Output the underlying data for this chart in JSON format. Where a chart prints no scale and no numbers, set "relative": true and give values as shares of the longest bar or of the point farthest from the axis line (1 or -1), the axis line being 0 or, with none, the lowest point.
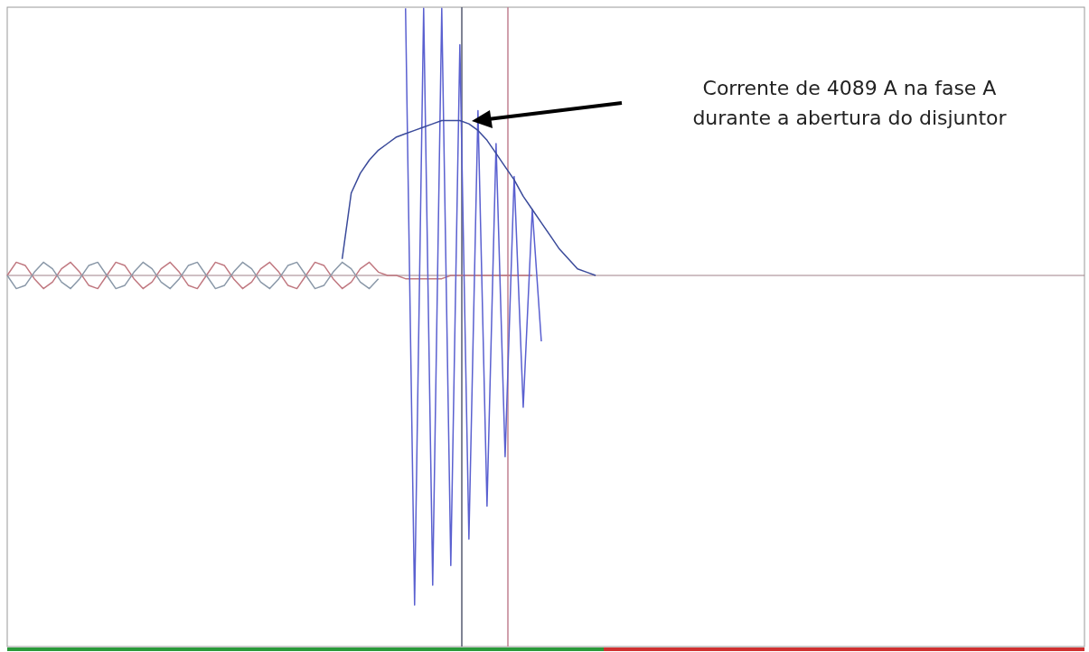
{
  "chart_data": {
    "type": "line",
    "relative": true,
    "categories": [
      null,
      null,
      null,
      null,
      null,
      null,
      null,
      null,
      null,
      null,
      null,
      null,
      null,
      null,
      null,
      null,
      null,
      null,
      null,
      null,
      null,
      null,
      null,
      null,
      null,
      null,
      null,
      null,
      null,
      null,
      null,
      null,
      null,
      null,
      null,
      null,
      null,
      null,
      null,
      null,
      null,
      null,
      null,
      null,
      null,
      null,
      null,
      null,
      null,
      null,
      null,
      null,
      null,
      null,
      null,
      null,
      null,
      null,
      null,
      null,
      null,
      null,
      null,
      null,
      null,
      null,
      null,
      null,
      null,
      null,
      null,
      null,
      null,
      null,
      null,
      null,
      null,
      null,
      null,
      null,
      null,
      null,
      null,
      null,
      null,
      null,
      null,
      null,
      null,
      null,
      null,
      null,
      null,
      null,
      null,
      null,
      null,
      null,
      null,
      null,
      null,
      null,
      null,
      null,
      null,
      null,
      null,
      null,
      null,
      null,
      null,
      null,
      null,
      null,
      null,
      null,
      null,
      null,
      null,
      null
    ],
    "series": [
      {
        "color": "#c07880",
        "values": [
          0,
          0.04,
          0.03,
          -0.01,
          -0.04,
          -0.02,
          0.02,
          0.04,
          0.01,
          -0.03,
          -0.04,
          0,
          0.04,
          0.03,
          -0.01,
          -0.04,
          -0.02,
          0.02,
          0.04,
          0.01,
          -0.03,
          -0.04,
          0,
          0.04,
          0.03,
          -0.01,
          -0.04,
          -0.02,
          0.02,
          0.04,
          0.01,
          -0.03,
          -0.04,
          0,
          0.04,
          0.03,
          -0.01,
          -0.04,
          -0.02,
          0.02,
          0.04,
          0.01,
          0,
          0,
          -0.01,
          -0.01,
          -0.01,
          -0.01,
          -0.01,
          0,
          0,
          0,
          0,
          0,
          0,
          0,
          0,
          0,
          0,
          null,
          null,
          null,
          null,
          null,
          null,
          null,
          null,
          null,
          null,
          null,
          null,
          null,
          null,
          null,
          null,
          null,
          null,
          null,
          null,
          null,
          null,
          null,
          null,
          null,
          null,
          null,
          null,
          null,
          null,
          null,
          null,
          null,
          null,
          null,
          null,
          null,
          null,
          null,
          null,
          null,
          null,
          null,
          null,
          null,
          null,
          null,
          null,
          null,
          null,
          null,
          null,
          null,
          null,
          null,
          null,
          null,
          null,
          null,
          null,
          null
        ]
      },
      {
        "color": "#8a98a8",
        "values": [
          0,
          -0.04,
          -0.03,
          0.01,
          0.04,
          0.02,
          -0.02,
          -0.04,
          -0.01,
          0.03,
          0.04,
          0,
          -0.04,
          -0.03,
          0.01,
          0.04,
          0.02,
          -0.02,
          -0.04,
          -0.01,
          0.03,
          0.04,
          0,
          -0.04,
          -0.03,
          0.01,
          0.04,
          0.02,
          -0.02,
          -0.04,
          -0.01,
          0.03,
          0.04,
          0,
          -0.04,
          -0.03,
          0.01,
          0.04,
          0.02,
          -0.02,
          -0.04,
          -0.01,
          null,
          null,
          null,
          null,
          null,
          null,
          null,
          null,
          null,
          null,
          null,
          null,
          null,
          null,
          null,
          null,
          null,
          null,
          null,
          null,
          null,
          null,
          null,
          null,
          null,
          null,
          null,
          null,
          null,
          null,
          null,
          null,
          null,
          null,
          null,
          null,
          null,
          null,
          null,
          null,
          null,
          null,
          null,
          null,
          null,
          null,
          null,
          null,
          null,
          null,
          null,
          null,
          null,
          null,
          null,
          null,
          null,
          null,
          null,
          null,
          null,
          null,
          null,
          null,
          null,
          null,
          null,
          null,
          null,
          null,
          null,
          null,
          null,
          null,
          null,
          null,
          null,
          null
        ]
      },
      {
        "color": "#5a60d0",
        "values": [
          null,
          null,
          null,
          null,
          null,
          null,
          null,
          null,
          null,
          null,
          null,
          null,
          null,
          null,
          null,
          null,
          null,
          null,
          null,
          null,
          null,
          null,
          null,
          null,
          null,
          null,
          null,
          null,
          null,
          null,
          null,
          null,
          null,
          null,
          null,
          null,
          null,
          null,
          null,
          null,
          null,
          null,
          null,
          null,
          0.81,
          -1,
          0.81,
          -0.94,
          0.81,
          -0.88,
          0.7,
          -0.8,
          0.5,
          -0.7,
          0.4,
          -0.55,
          0.3,
          -0.4,
          0.2,
          -0.2,
          null,
          null,
          null,
          null,
          null,
          null,
          null,
          null,
          null,
          null,
          null,
          null,
          null,
          null,
          null,
          null,
          null,
          null,
          null,
          null,
          null,
          null,
          null,
          null,
          null,
          null,
          null,
          null,
          null,
          null,
          null,
          null,
          null,
          null,
          null,
          null,
          null,
          null,
          null,
          null,
          null,
          null,
          null,
          null,
          null,
          null,
          null,
          null,
          null,
          null,
          null,
          null,
          null,
          null,
          null,
          null,
          null,
          null,
          null,
          null
        ]
      },
      {
        "color": "#3a4a9a",
        "values": [
          null,
          null,
          null,
          null,
          null,
          null,
          null,
          null,
          null,
          null,
          null,
          null,
          null,
          null,
          null,
          null,
          null,
          null,
          null,
          null,
          null,
          null,
          null,
          null,
          null,
          null,
          null,
          null,
          null,
          null,
          null,
          null,
          null,
          null,
          null,
          null,
          null,
          0.05,
          0.25,
          0.31,
          0.35,
          0.38,
          0.4,
          0.42,
          0.43,
          0.44,
          0.45,
          0.46,
          0.47,
          0.47,
          0.47,
          0.46,
          0.44,
          0.41,
          0.37,
          0.33,
          0.29,
          0.24,
          0.2,
          0.16,
          0.12,
          0.08,
          0.05,
          0.02,
          0.01,
          0,
          null,
          null,
          null,
          null,
          null,
          null,
          null,
          null,
          null,
          null,
          null,
          null,
          null,
          null,
          null,
          null,
          null,
          null,
          null,
          null,
          null,
          null,
          null,
          null,
          null,
          null,
          null,
          null,
          null,
          null,
          null,
          null,
          null,
          null,
          null,
          null,
          null,
          null,
          null,
          null,
          null,
          null,
          null,
          null,
          null,
          null,
          null,
          null,
          null,
          null,
          null,
          null,
          null,
          null
        ]
      }
    ],
    "annotations": [
      "Corrente de 4089 A na fase A\ndurante a abertura do disjuntor"
    ]
  }
}
